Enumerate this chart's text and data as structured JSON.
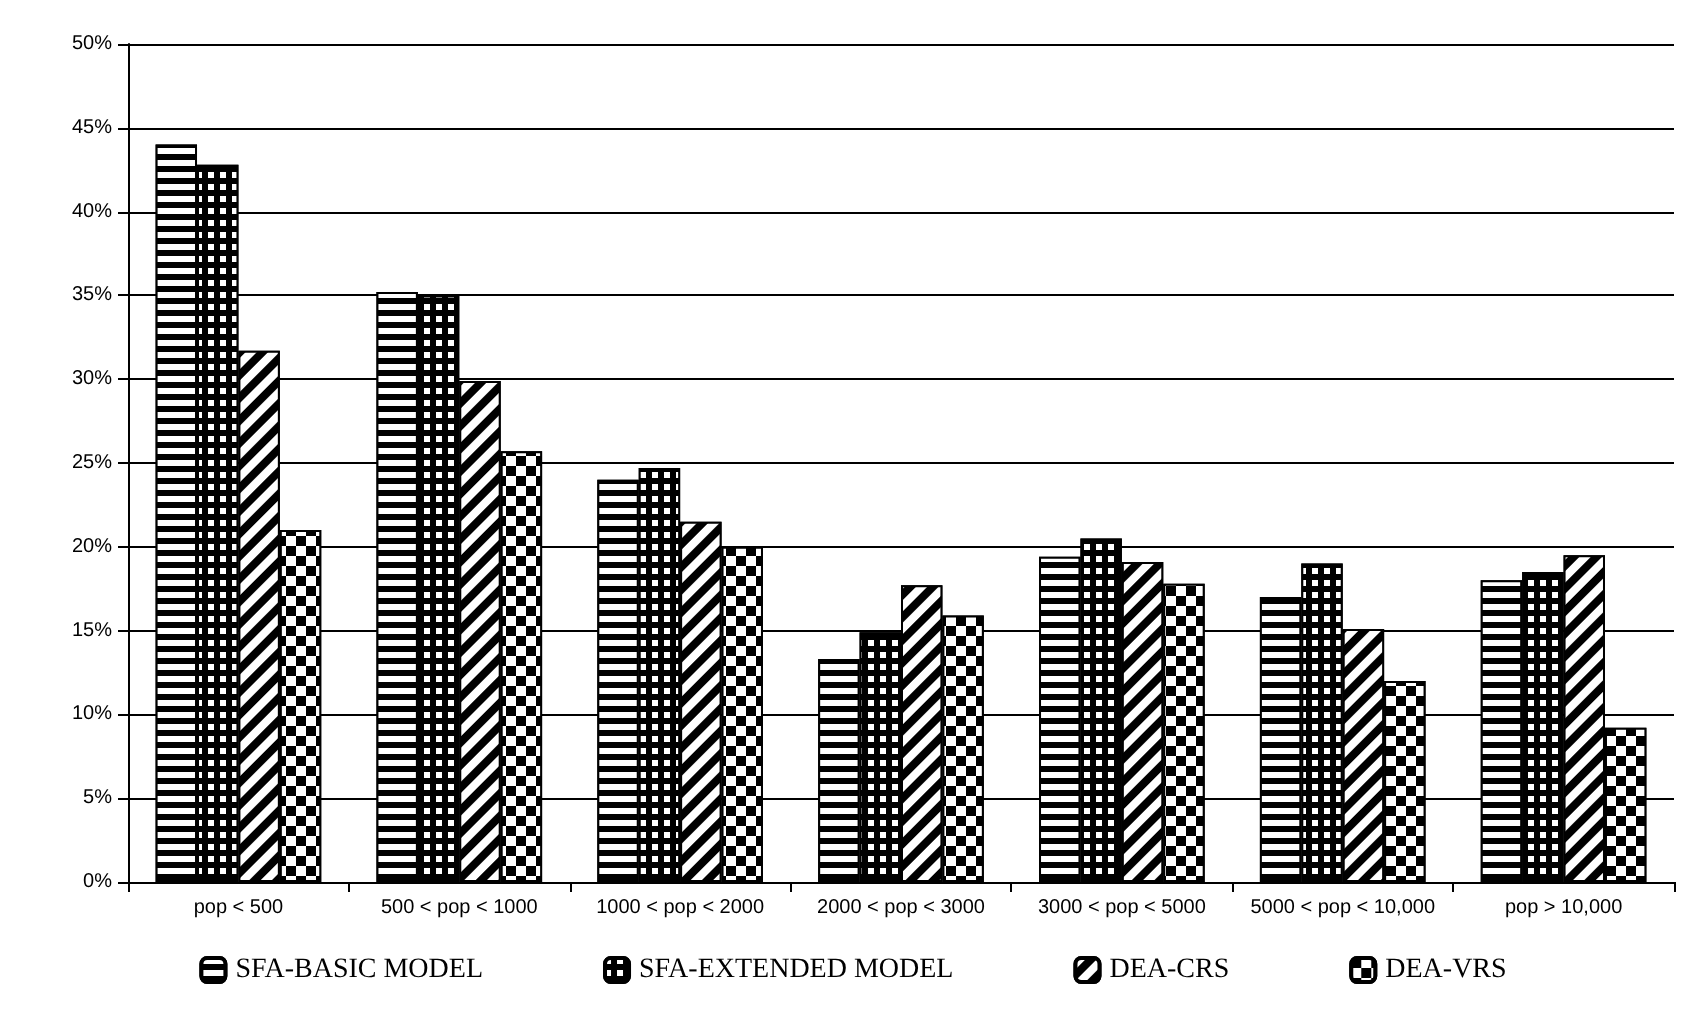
{
  "chart_data": {
    "type": "bar",
    "categories": [
      "pop < 500",
      "500 < pop < 1000",
      "1000 < pop < 2000",
      "2000 < pop < 3000",
      "3000 < pop < 5000",
      "5000 < pop < 10,000",
      "pop > 10,000"
    ],
    "series": [
      {
        "name": "SFA-BASIC MODEL",
        "color": "#000000",
        "values": [
          44,
          35.2,
          24,
          13.3,
          19.4,
          17,
          18
        ]
      },
      {
        "name": "SFA-EXTENDED MODEL",
        "color": "#000000",
        "values": [
          42.8,
          35,
          24.7,
          14.9,
          20.5,
          19,
          18.5
        ]
      },
      {
        "name": "DEA-CRS",
        "color": "#000000",
        "values": [
          31.7,
          29.9,
          21.5,
          17.7,
          19.1,
          15.1,
          19.5
        ]
      },
      {
        "name": "DEA-VRS",
        "color": "#000000",
        "values": [
          21,
          25.7,
          20,
          15.9,
          17.8,
          12,
          9.2
        ]
      }
    ],
    "ylim": [
      0,
      50
    ],
    "yticks": [
      {
        "value": 0,
        "label": "0%"
      },
      {
        "value": 5,
        "label": "5%"
      },
      {
        "value": 10,
        "label": "10%"
      },
      {
        "value": 15,
        "label": "15%"
      },
      {
        "value": 20,
        "label": "20%"
      },
      {
        "value": 25,
        "label": "25%"
      },
      {
        "value": 30,
        "label": "30%"
      },
      {
        "value": 35,
        "label": "35%"
      },
      {
        "value": 40,
        "label": "40%"
      },
      {
        "value": 45,
        "label": "45%"
      },
      {
        "value": 50,
        "label": "50%"
      }
    ],
    "grid": "y",
    "legend": "bottom"
  }
}
